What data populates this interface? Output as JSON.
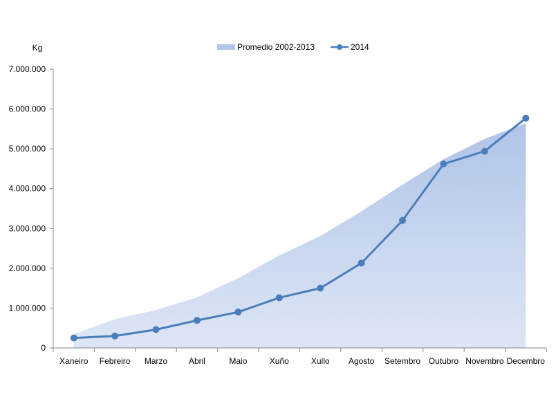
{
  "chart_data": {
    "type": "area",
    "ylabel": "Kg",
    "ylim": [
      0,
      7000000
    ],
    "ytick_values": [
      0,
      1000000,
      2000000,
      3000000,
      4000000,
      5000000,
      6000000,
      7000000
    ],
    "ytick_labels": [
      "0",
      "1.000.000",
      "2.000.000",
      "3.000.000",
      "4.000.000",
      "5.000.000",
      "6.000.000",
      "7.000.000"
    ],
    "categories": [
      "Xaneiro",
      "Febreiro",
      "Marzo",
      "Abril",
      "Maio",
      "Xuño",
      "Xullo",
      "Agosto",
      "Setembro",
      "Outubro",
      "Novembro",
      "Decembro"
    ],
    "grid": false,
    "legend_position": "top",
    "series": [
      {
        "name": "Promedio 2002-2013",
        "kind": "area",
        "color": "#b4c7e7",
        "values": [
          350000,
          720000,
          950000,
          1270000,
          1750000,
          2320000,
          2810000,
          3430000,
          4100000,
          4740000,
          5250000,
          5640000
        ]
      },
      {
        "name": "2014",
        "kind": "line",
        "color": "#4a7ebb",
        "values": [
          250000,
          300000,
          460000,
          690000,
          900000,
          1260000,
          1500000,
          2130000,
          3200000,
          4620000,
          4940000,
          5770000
        ]
      }
    ]
  }
}
